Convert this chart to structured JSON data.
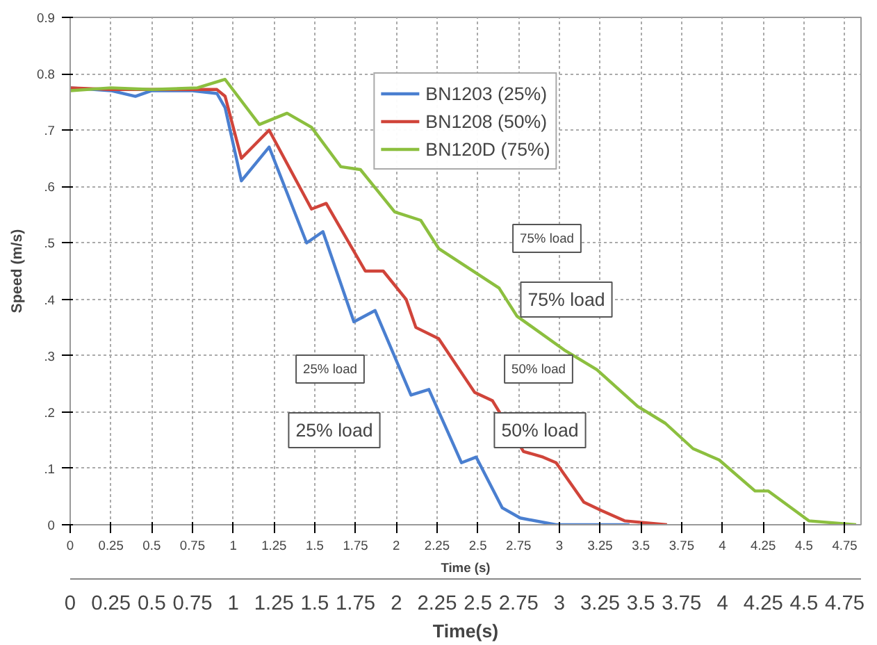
{
  "chart_data": {
    "type": "line",
    "xlabel": "Time (s)",
    "ylabel": "Speed (m/s)",
    "x2label": "Time(s)",
    "xlim": [
      0,
      4.85
    ],
    "xticks": [
      0,
      0.25,
      0.5,
      0.75,
      1,
      1.25,
      1.5,
      1.75,
      2,
      2.25,
      2.5,
      2.75,
      3,
      3.25,
      3.5,
      3.75,
      4,
      4.25,
      4.5,
      4.75
    ],
    "x2lim": [
      0,
      4.85
    ],
    "x2ticks": [
      0,
      0.25,
      0.5,
      0.75,
      1,
      1.25,
      1.5,
      1.75,
      2,
      2.25,
      2.5,
      2.75,
      3,
      3.25,
      3.5,
      3.75,
      4,
      4.25,
      4.5,
      4.75
    ],
    "ylim": [
      0,
      0.9
    ],
    "yticks": [
      0,
      {
        "value": 0.1,
        "label": ".1"
      },
      {
        "value": 0.2,
        "label": ".2"
      },
      {
        "value": 0.3,
        "label": ".3"
      },
      {
        "value": 0.4,
        "label": ".4"
      },
      {
        "value": 0.5,
        "label": ".5"
      },
      {
        "value": 0.6,
        "label": ".6"
      },
      {
        "value": 0.7,
        "label": ".7"
      },
      {
        "value": 0.8,
        "label": "0.8"
      },
      0.9
    ],
    "grid": true,
    "legend": "top",
    "marker": "none",
    "line_style": "solid",
    "series": [
      {
        "name": "BN1203 (25%)",
        "color": "#4a7fd0",
        "x": [
          0,
          0.25,
          0.4,
          0.5,
          0.75,
          0.9,
          0.95,
          1.05,
          1.22,
          1.45,
          1.55,
          1.74,
          1.87,
          2.09,
          2.2,
          2.4,
          2.49,
          2.65,
          2.76,
          2.98,
          3.43
        ],
        "values": [
          0.775,
          0.77,
          0.76,
          0.77,
          0.77,
          0.765,
          0.74,
          0.61,
          0.67,
          0.5,
          0.52,
          0.36,
          0.38,
          0.23,
          0.24,
          0.11,
          0.12,
          0.03,
          0.012,
          0,
          0
        ]
      },
      {
        "name": "BN1208 (50%)",
        "color": "#d0443a",
        "x": [
          0,
          0.25,
          0.5,
          0.75,
          0.9,
          0.95,
          1.05,
          1.22,
          1.48,
          1.57,
          1.81,
          1.92,
          2.06,
          2.12,
          2.26,
          2.48,
          2.59,
          2.78,
          2.9,
          2.98,
          3.15,
          3.26,
          3.4,
          3.66
        ],
        "values": [
          0.775,
          0.772,
          0.772,
          0.772,
          0.772,
          0.76,
          0.65,
          0.7,
          0.56,
          0.57,
          0.45,
          0.45,
          0.4,
          0.35,
          0.33,
          0.235,
          0.22,
          0.13,
          0.12,
          0.11,
          0.04,
          0.025,
          0.007,
          0
        ]
      },
      {
        "name": "BN120D (75%)",
        "color": "#8cbf3f",
        "x": [
          0,
          0.25,
          0.5,
          0.78,
          0.95,
          1.16,
          1.33,
          1.48,
          1.66,
          1.78,
          1.99,
          2.15,
          2.26,
          2.63,
          2.74,
          3.03,
          3.23,
          3.48,
          3.65,
          3.82,
          3.98,
          4.2,
          4.28,
          4.53,
          4.82
        ],
        "values": [
          0.77,
          0.775,
          0.772,
          0.775,
          0.79,
          0.71,
          0.73,
          0.705,
          0.635,
          0.63,
          0.555,
          0.54,
          0.49,
          0.42,
          0.37,
          0.31,
          0.275,
          0.21,
          0.18,
          0.135,
          0.115,
          0.06,
          0.06,
          0.007,
          0
        ]
      }
    ],
    "annotations": [
      "25% load",
      "25% load",
      "50% load",
      "50% load",
      "75% load",
      "75% load"
    ]
  }
}
